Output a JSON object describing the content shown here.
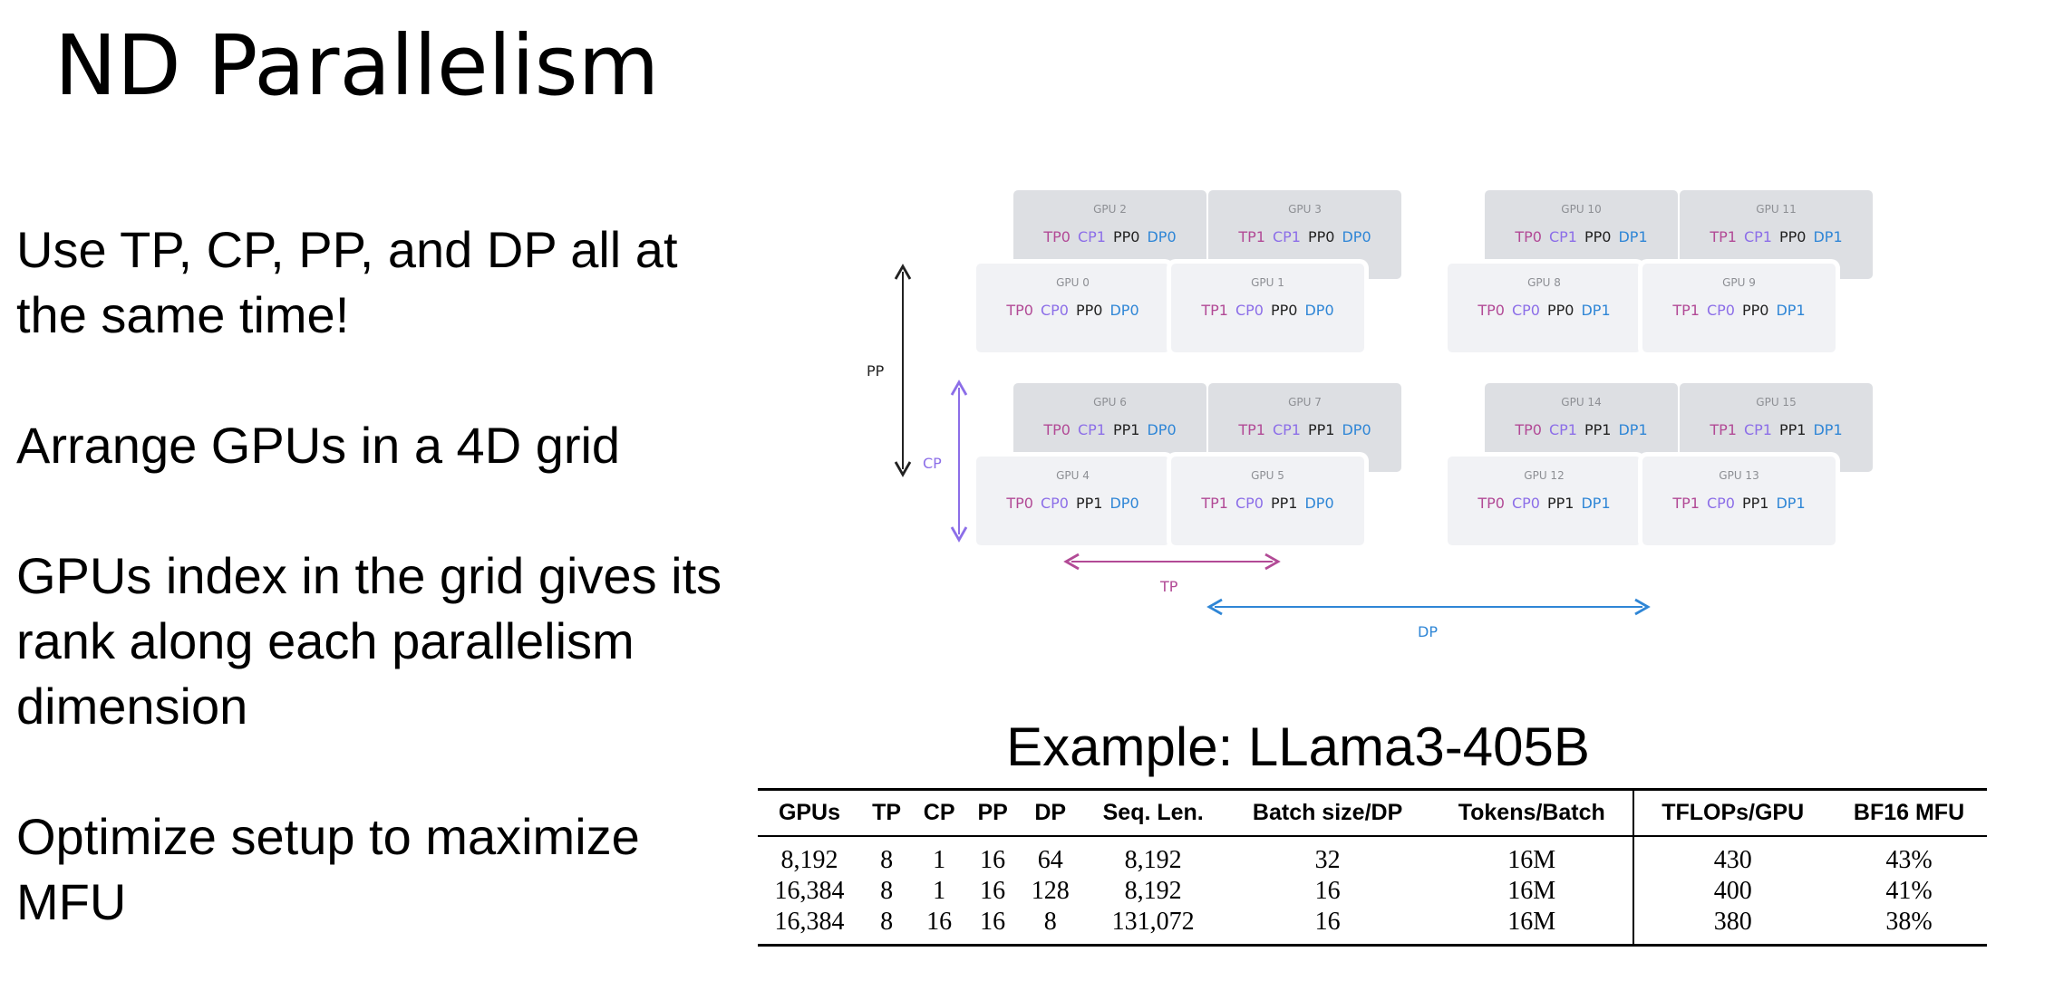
{
  "title": "ND Parallelism",
  "bullets": [
    "Use TP, CP, PP, and DP all at the same time!",
    "Arrange GPUs in a 4D grid",
    "GPUs index in the grid gives its rank along each parallelism dimension",
    "Optimize setup to maximize MFU"
  ],
  "diagram": {
    "axis_labels": {
      "pp": "PP",
      "cp": "CP",
      "tp": "TP",
      "dp": "DP"
    },
    "colors": {
      "tp": "#b24a96",
      "cp": "#8c6ee8",
      "pp": "#222222",
      "dp": "#2f86d6"
    },
    "gpus": [
      {
        "name": "GPU 2",
        "ranks": [
          "TP0",
          "CP1",
          "PP0",
          "DP0"
        ]
      },
      {
        "name": "GPU 3",
        "ranks": [
          "TP1",
          "CP1",
          "PP0",
          "DP0"
        ]
      },
      {
        "name": "GPU 10",
        "ranks": [
          "TP0",
          "CP1",
          "PP0",
          "DP1"
        ]
      },
      {
        "name": "GPU 11",
        "ranks": [
          "TP1",
          "CP1",
          "PP0",
          "DP1"
        ]
      },
      {
        "name": "GPU 0",
        "ranks": [
          "TP0",
          "CP0",
          "PP0",
          "DP0"
        ]
      },
      {
        "name": "GPU 1",
        "ranks": [
          "TP1",
          "CP0",
          "PP0",
          "DP0"
        ]
      },
      {
        "name": "GPU 8",
        "ranks": [
          "TP0",
          "CP0",
          "PP0",
          "DP1"
        ]
      },
      {
        "name": "GPU 9",
        "ranks": [
          "TP1",
          "CP0",
          "PP0",
          "DP1"
        ]
      },
      {
        "name": "GPU 6",
        "ranks": [
          "TP0",
          "CP1",
          "PP1",
          "DP0"
        ]
      },
      {
        "name": "GPU 7",
        "ranks": [
          "TP1",
          "CP1",
          "PP1",
          "DP0"
        ]
      },
      {
        "name": "GPU 14",
        "ranks": [
          "TP0",
          "CP1",
          "PP1",
          "DP1"
        ]
      },
      {
        "name": "GPU 15",
        "ranks": [
          "TP1",
          "CP1",
          "PP1",
          "DP1"
        ]
      },
      {
        "name": "GPU 4",
        "ranks": [
          "TP0",
          "CP0",
          "PP1",
          "DP0"
        ]
      },
      {
        "name": "GPU 5",
        "ranks": [
          "TP1",
          "CP0",
          "PP1",
          "DP0"
        ]
      },
      {
        "name": "GPU 12",
        "ranks": [
          "TP0",
          "CP0",
          "PP1",
          "DP1"
        ]
      },
      {
        "name": "GPU 13",
        "ranks": [
          "TP1",
          "CP0",
          "PP1",
          "DP1"
        ]
      }
    ]
  },
  "example": {
    "title": "Example: LLama3-405B",
    "headers": [
      "GPUs",
      "TP",
      "CP",
      "PP",
      "DP",
      "Seq. Len.",
      "Batch size/DP",
      "Tokens/Batch",
      "TFLOPs/GPU",
      "BF16 MFU"
    ],
    "rows": [
      [
        "8,192",
        "8",
        "1",
        "16",
        "64",
        "8,192",
        "32",
        "16M",
        "430",
        "43%"
      ],
      [
        "16,384",
        "8",
        "1",
        "16",
        "128",
        "8,192",
        "16",
        "16M",
        "400",
        "41%"
      ],
      [
        "16,384",
        "8",
        "16",
        "16",
        "8",
        "131,072",
        "16",
        "16M",
        "380",
        "38%"
      ]
    ]
  }
}
